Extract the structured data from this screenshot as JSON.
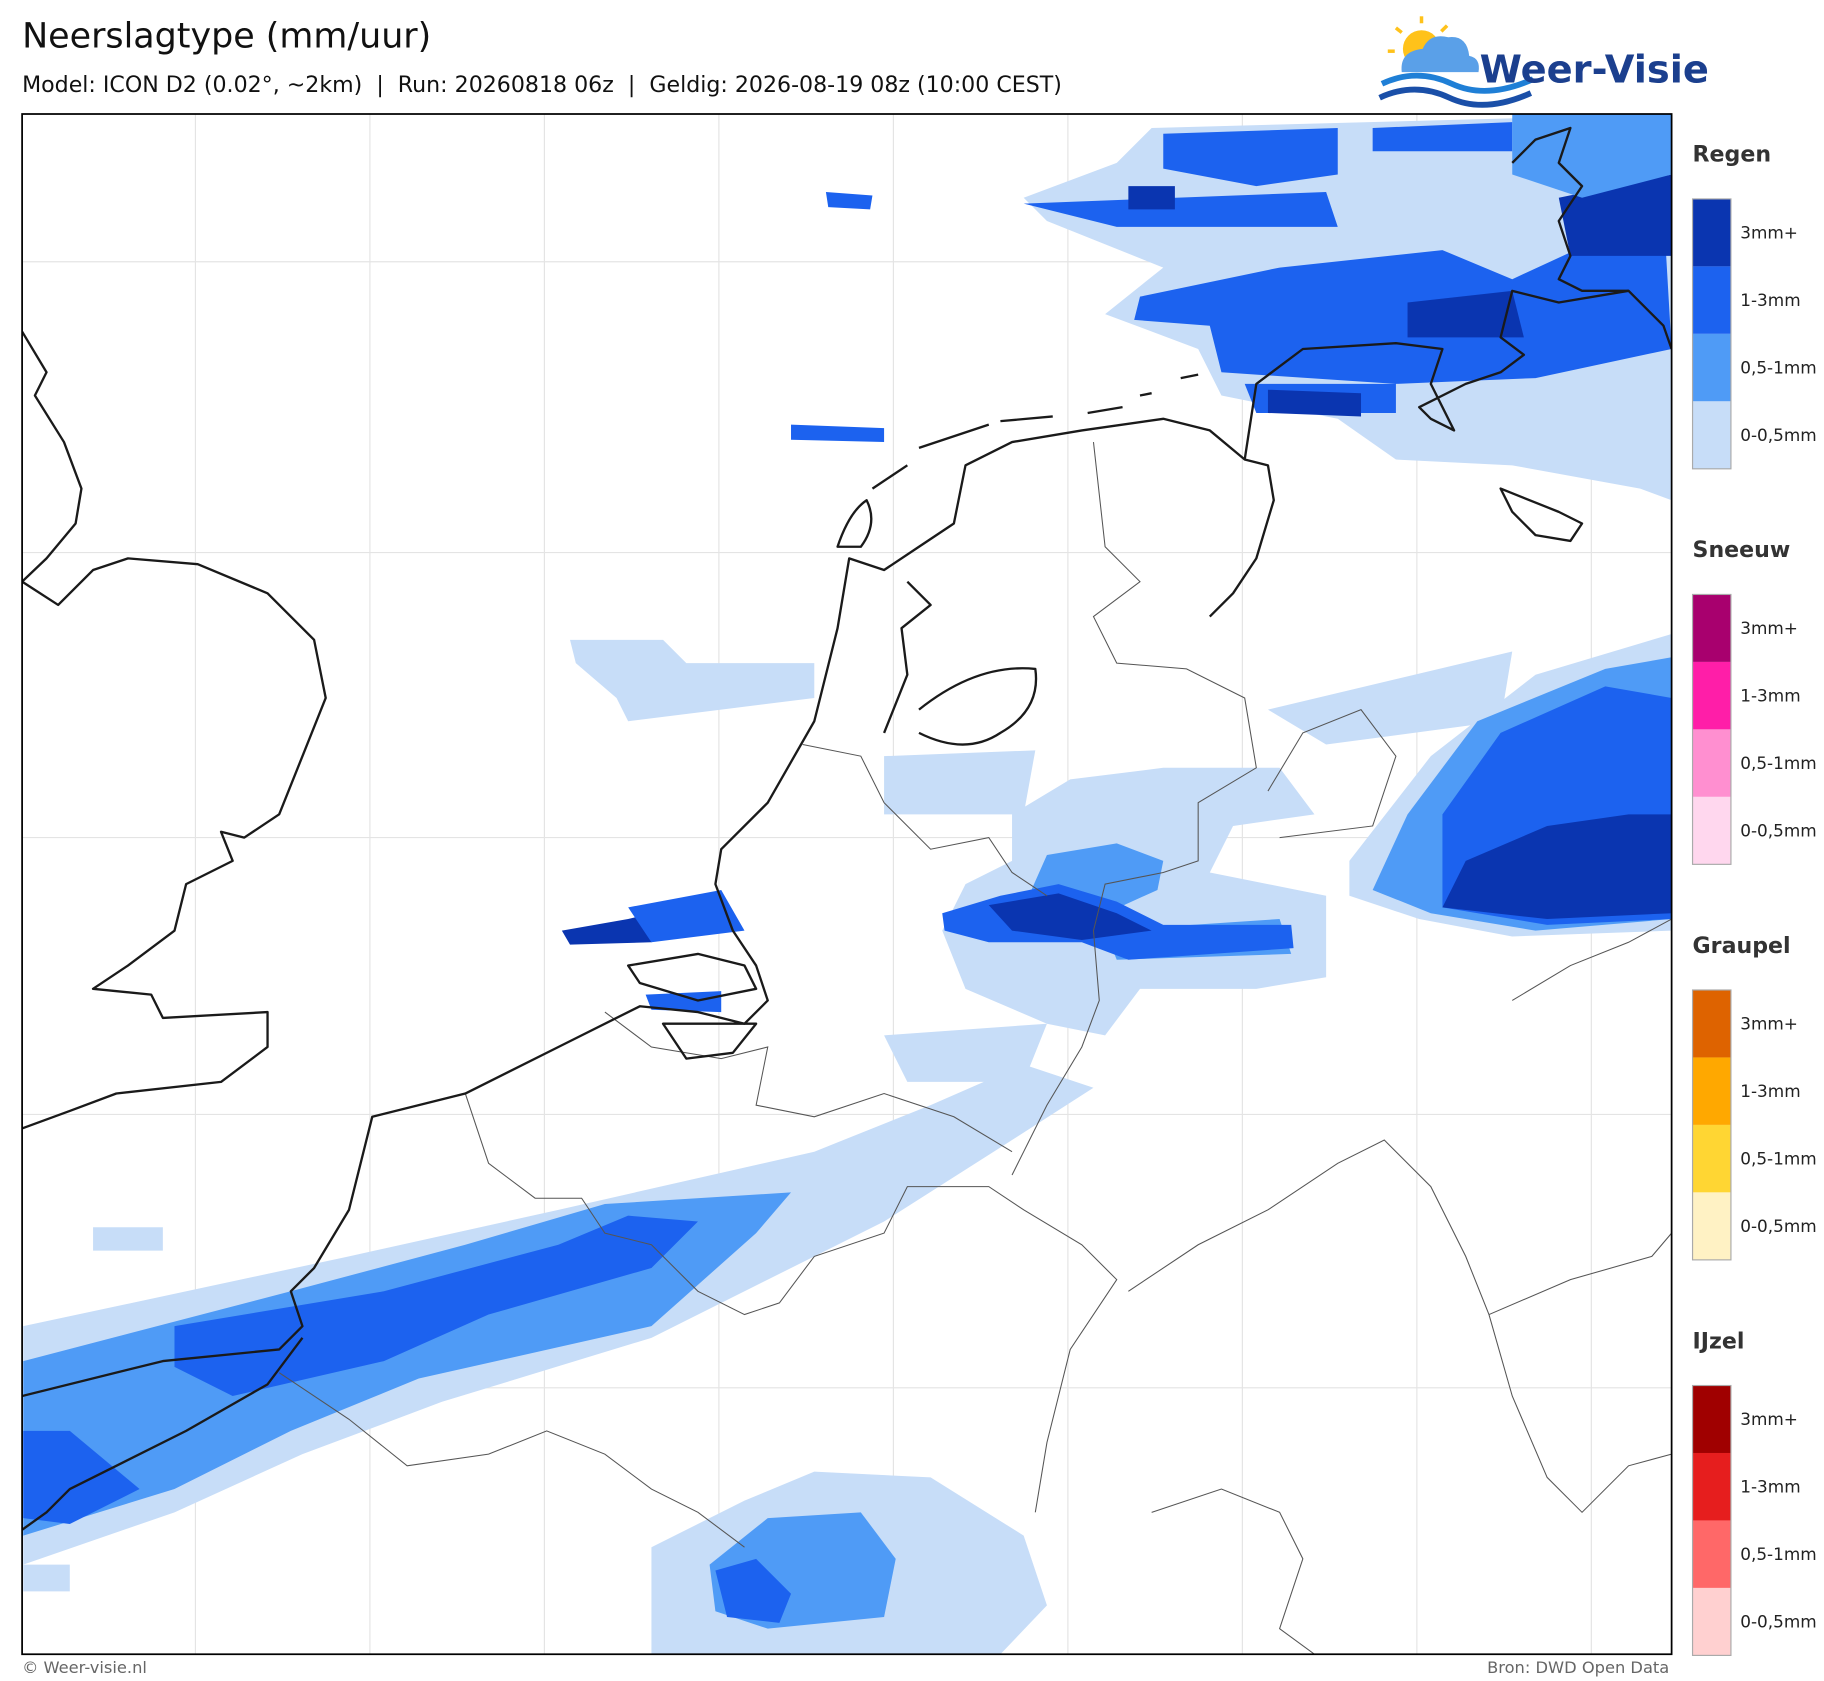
{
  "header": {
    "title": "Neerslagtype (mm/uur)",
    "subtitle": "Model: ICON D2 (0.02°, ~2km)  |  Run: 20260818 06z  |  Geldig: 2026-08-19 08z (10:00 CEST)"
  },
  "logo": {
    "text": "Weer-Visie"
  },
  "legend": [
    {
      "title": "Regen",
      "items": [
        {
          "label": "3mm+",
          "color": "#0a35b0"
        },
        {
          "label": "1-3mm",
          "color": "#1c62ef"
        },
        {
          "label": "0,5-1mm",
          "color": "#4f9bf6"
        },
        {
          "label": "0-0,5mm",
          "color": "#c7ddf8"
        }
      ]
    },
    {
      "title": "Sneeuw",
      "items": [
        {
          "label": "3mm+",
          "color": "#a8006e"
        },
        {
          "label": "1-3mm",
          "color": "#ff1ea8"
        },
        {
          "label": "0,5-1mm",
          "color": "#ff8fd0"
        },
        {
          "label": "0-0,5mm",
          "color": "#ffd7ee"
        }
      ]
    },
    {
      "title": "Graupel",
      "items": [
        {
          "label": "3mm+",
          "color": "#de6300"
        },
        {
          "label": "1-3mm",
          "color": "#ffa800"
        },
        {
          "label": "0,5-1mm",
          "color": "#ffd633"
        },
        {
          "label": "0-0,5mm",
          "color": "#fff2c4"
        }
      ]
    },
    {
      "title": "IJzel",
      "items": [
        {
          "label": "3mm+",
          "color": "#a00000"
        },
        {
          "label": "1-3mm",
          "color": "#e61e1e"
        },
        {
          "label": "0,5-1mm",
          "color": "#ff6868"
        },
        {
          "label": "0-0,5mm",
          "color": "#ffd0d0"
        }
      ]
    }
  ],
  "footer": {
    "left": "© Weer-visie.nl",
    "right": "Bron: DWD Open Data"
  }
}
